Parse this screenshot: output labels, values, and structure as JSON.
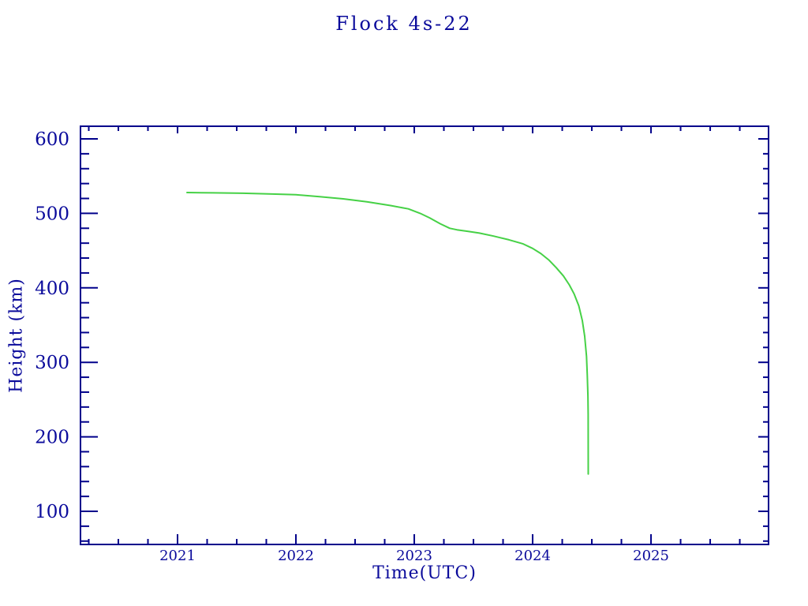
{
  "title": "Flock 4s-22",
  "chart_data": {
    "type": "line",
    "title": "Flock 4s-22",
    "xlabel": "Time(UTC)",
    "ylabel": "Height (km)",
    "xlim": [
      2020.18,
      2025.993
    ],
    "ylim": [
      55.5,
      616.95
    ],
    "grid": false,
    "legend": null,
    "x_major_ticks": [
      2021,
      2022,
      2023,
      2024,
      2025
    ],
    "x_tick_labels": [
      "2021",
      "2022",
      "2023",
      "2024",
      "2025"
    ],
    "x_minor_interval": 0.25,
    "y_major_ticks": [
      100,
      200,
      300,
      400,
      500,
      600
    ],
    "y_tick_labels": [
      "100",
      "200",
      "300",
      "400",
      "500",
      "600"
    ],
    "y_minor_interval": 20,
    "colors": {
      "axis": "#00008B",
      "text": "#0A0A9B",
      "line": "#46D146",
      "background": "#FFFFFF"
    },
    "series": [
      {
        "name": "Flock 4s-22 orbital height",
        "color": "#46D146",
        "points": [
          [
            2021.08,
            528
          ],
          [
            2021.3,
            527.5
          ],
          [
            2021.55,
            527
          ],
          [
            2021.8,
            526
          ],
          [
            2022.0,
            525
          ],
          [
            2022.2,
            522.5
          ],
          [
            2022.4,
            519.5
          ],
          [
            2022.6,
            515.5
          ],
          [
            2022.8,
            510.5
          ],
          [
            2022.95,
            506
          ],
          [
            2023.05,
            500
          ],
          [
            2023.13,
            494
          ],
          [
            2023.22,
            486
          ],
          [
            2023.3,
            480
          ],
          [
            2023.36,
            478
          ],
          [
            2023.45,
            476
          ],
          [
            2023.55,
            473.5
          ],
          [
            2023.67,
            469.5
          ],
          [
            2023.8,
            464.5
          ],
          [
            2023.92,
            459
          ],
          [
            2024.0,
            453
          ],
          [
            2024.07,
            446
          ],
          [
            2024.14,
            437
          ],
          [
            2024.2,
            427
          ],
          [
            2024.26,
            416
          ],
          [
            2024.31,
            404
          ],
          [
            2024.35,
            392
          ],
          [
            2024.39,
            376
          ],
          [
            2024.42,
            356
          ],
          [
            2024.44,
            335
          ],
          [
            2024.455,
            308
          ],
          [
            2024.462,
            282
          ],
          [
            2024.467,
            255
          ],
          [
            2024.469,
            230
          ],
          [
            2024.47,
            150
          ]
        ]
      }
    ]
  }
}
